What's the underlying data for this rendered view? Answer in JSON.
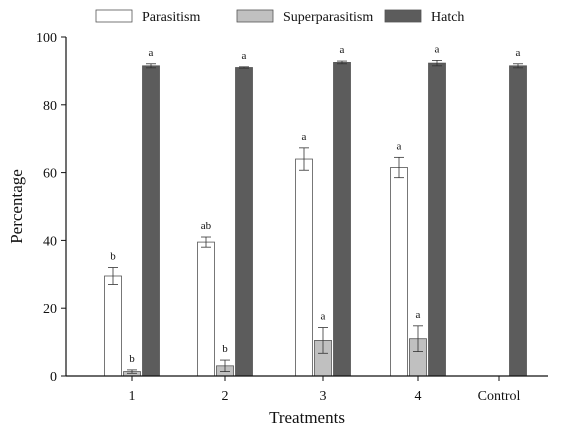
{
  "chart_data": {
    "type": "bar",
    "title": "",
    "xlabel": "Treatments",
    "ylabel": "Percentage",
    "ylim": [
      0,
      100
    ],
    "yticks": [
      0,
      20,
      40,
      60,
      80,
      100
    ],
    "grid": false,
    "legend_position": "top",
    "categories": [
      "1",
      "2",
      "3",
      "4",
      "Control"
    ],
    "series": [
      {
        "name": "Parasitism",
        "color": "#ffffff",
        "values": [
          29.5,
          39.5,
          64.0,
          61.5,
          null
        ],
        "errors": [
          2.5,
          1.5,
          3.3,
          3.0,
          null
        ],
        "labels": [
          "b",
          "ab",
          "a",
          "a",
          ""
        ]
      },
      {
        "name": "Superparasitism",
        "color": "#c0c0c0",
        "values": [
          1.3,
          3.0,
          10.5,
          11.0,
          null
        ],
        "errors": [
          0.5,
          1.7,
          3.8,
          3.8,
          null
        ],
        "labels": [
          "b",
          "b",
          "a",
          "a",
          ""
        ]
      },
      {
        "name": "Hatch",
        "color": "#5c5c5c",
        "values": [
          91.5,
          91.0,
          92.5,
          92.3,
          91.5
        ],
        "errors": [
          0.6,
          0.2,
          0.4,
          0.8,
          0.6
        ],
        "labels": [
          "a",
          "a",
          "a",
          "a",
          "a"
        ]
      }
    ]
  }
}
